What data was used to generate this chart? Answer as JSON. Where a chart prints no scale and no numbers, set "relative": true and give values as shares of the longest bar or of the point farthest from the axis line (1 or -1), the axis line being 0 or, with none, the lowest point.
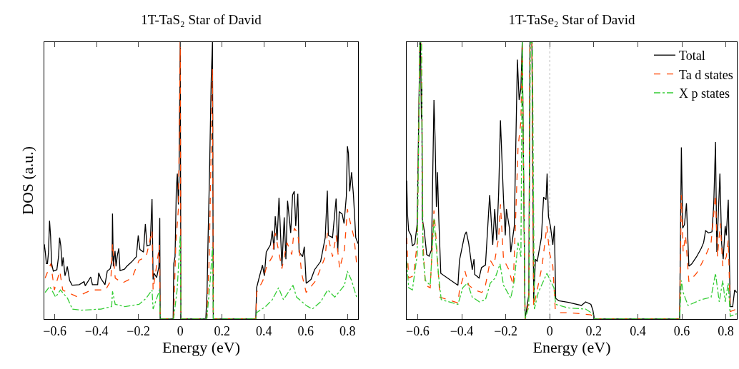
{
  "chart_data": [
    {
      "type": "line",
      "title": "1T-TaS₂ Star of David",
      "xlabel": "Energy (eV)",
      "ylabel": "DOS (a.u.)",
      "relative": true,
      "grid": false,
      "legend": false,
      "xlim": [
        -0.65,
        0.85
      ],
      "xticks": [
        {
          "value": -0.6,
          "label": "−0.6"
        },
        {
          "value": -0.4,
          "label": "−0.4"
        },
        {
          "value": -0.2,
          "label": "−0.2"
        },
        0,
        0.2,
        0.4,
        0.6,
        0.8
      ],
      "series": [
        {
          "color": "#000000",
          "line_style": "solid",
          "x": [
            -0.65,
            -0.645,
            -0.64,
            -0.635,
            -0.63,
            -0.625,
            -0.62,
            -0.615,
            -0.607,
            -0.59,
            -0.582,
            -0.577,
            -0.571,
            -0.565,
            -0.56,
            -0.551,
            -0.54,
            -0.529,
            -0.517,
            -0.483,
            -0.46,
            -0.454,
            -0.428,
            -0.42,
            -0.395,
            -0.39,
            -0.381,
            -0.36,
            -0.349,
            -0.335,
            -0.326,
            -0.324,
            -0.32,
            -0.312,
            -0.307,
            -0.301,
            -0.294,
            -0.288,
            -0.267,
            -0.256,
            -0.233,
            -0.21,
            -0.201,
            -0.193,
            -0.176,
            -0.167,
            -0.159,
            -0.144,
            -0.135,
            -0.13,
            -0.125,
            -0.113,
            -0.102,
            -0.098,
            -0.096,
            -0.034,
            -0.031,
            -0.025,
            -0.019,
            -0.014,
            -0.009,
            -0.006,
            0.0,
            0.003,
            0.122,
            0.128,
            0.133,
            0.14,
            0.148,
            0.154,
            0.158,
            0.361,
            0.365,
            0.378,
            0.393,
            0.402,
            0.411,
            0.431,
            0.44,
            0.448,
            0.454,
            0.463,
            0.472,
            0.486,
            0.497,
            0.505,
            0.513,
            0.528,
            0.537,
            0.545,
            0.552,
            0.562,
            0.568,
            0.585,
            0.593,
            0.602,
            0.625,
            0.642,
            0.671,
            0.693,
            0.703,
            0.708,
            0.728,
            0.745,
            0.753,
            0.76,
            0.774,
            0.783,
            0.794,
            0.799,
            0.804,
            0.81,
            0.819,
            0.828,
            0.839,
            0.85
          ],
          "values": [
            0.27,
            0.24,
            0.2,
            0.2,
            0.24,
            0.355,
            0.3,
            0.2,
            0.173,
            0.178,
            0.225,
            0.294,
            0.264,
            0.19,
            0.223,
            0.156,
            0.19,
            0.139,
            0.122,
            0.124,
            0.135,
            0.12,
            0.152,
            0.124,
            0.124,
            0.167,
            0.148,
            0.124,
            0.173,
            0.182,
            0.212,
            0.381,
            0.19,
            0.246,
            0.19,
            0.229,
            0.255,
            0.175,
            0.18,
            0.19,
            0.206,
            0.225,
            0.302,
            0.251,
            0.242,
            0.343,
            0.264,
            0.268,
            0.433,
            0.143,
            0.165,
            0.15,
            0.19,
            0.365,
            0,
            0,
            0.2,
            0.225,
            0.465,
            0.525,
            0.414,
            0.5,
            1,
            0,
            0,
            0.096,
            0.294,
            0.534,
            0.869,
            1,
            0,
            0,
            0.113,
            0.152,
            0.195,
            0.156,
            0.242,
            0.268,
            0.319,
            0.251,
            0.371,
            0.285,
            0.438,
            0.191,
            0.367,
            0.216,
            0.427,
            0.311,
            0.448,
            0.461,
            0.336,
            0.452,
            0.242,
            0.225,
            0.261,
            0.129,
            0.143,
            0.178,
            0.208,
            0.294,
            0.464,
            0.302,
            0.294,
            0.435,
            0.242,
            0.388,
            0.379,
            0.345,
            0.444,
            0.624,
            0.598,
            0.461,
            0.53,
            0.448,
            0.294,
            0.272
          ]
        },
        {
          "color": "#ff4500",
          "line_style": "dashed",
          "x": [
            -0.646,
            -0.619,
            -0.602,
            -0.576,
            -0.562,
            -0.539,
            -0.494,
            -0.425,
            -0.357,
            -0.332,
            -0.324,
            -0.311,
            -0.277,
            -0.231,
            -0.197,
            -0.163,
            -0.135,
            -0.13,
            -0.099,
            -0.096,
            -0.032,
            -0.021,
            -0.009,
            0.0,
            0.003,
            0.127,
            0.139,
            0.15,
            0.154,
            0.158,
            0.361,
            0.365,
            0.395,
            0.413,
            0.44,
            0.454,
            0.486,
            0.51,
            0.533,
            0.545,
            0.562,
            0.58,
            0.602,
            0.648,
            0.693,
            0.703,
            0.728,
            0.745,
            0.762,
            0.785,
            0.799,
            0.814,
            0.831,
            0.843
          ],
          "values": [
            0.148,
            0.2,
            0.105,
            0.173,
            0.105,
            0.096,
            0.081,
            0.105,
            0.105,
            0.139,
            0.272,
            0.148,
            0.13,
            0.148,
            0.212,
            0.225,
            0.319,
            0.105,
            0.268,
            0,
            0,
            0.276,
            0.397,
            1,
            0,
            0,
            0.233,
            0.723,
            0.903,
            0,
            0,
            0.096,
            0.139,
            0.19,
            0.225,
            0.311,
            0.182,
            0.276,
            0.233,
            0.328,
            0.311,
            0.165,
            0.096,
            0.139,
            0.225,
            0.311,
            0.225,
            0.302,
            0.182,
            0.251,
            0.397,
            0.345,
            0.294,
            0.2
          ]
        },
        {
          "color": "#33cc33",
          "line_style": "dashdot",
          "x": [
            -0.646,
            -0.624,
            -0.596,
            -0.573,
            -0.539,
            -0.516,
            -0.471,
            -0.379,
            -0.328,
            -0.324,
            -0.311,
            -0.265,
            -0.197,
            -0.163,
            -0.135,
            -0.13,
            -0.099,
            -0.096,
            -0.032,
            -0.015,
            0.0,
            0.003,
            0.127,
            0.144,
            0.154,
            0.158,
            0.361,
            0.365,
            0.408,
            0.44,
            0.47,
            0.493,
            0.539,
            0.556,
            0.602,
            0.631,
            0.671,
            0.705,
            0.739,
            0.785,
            0.799,
            0.819,
            0.843
          ],
          "values": [
            0.096,
            0.118,
            0.079,
            0.105,
            0.075,
            0.036,
            0.032,
            0.036,
            0.045,
            0.1,
            0.053,
            0.045,
            0.053,
            0.075,
            0.105,
            0.036,
            0.105,
            0,
            0,
            0.105,
            0.302,
            0,
            0,
            0.148,
            0.26,
            0,
            0,
            0.023,
            0.045,
            0.07,
            0.113,
            0.07,
            0.122,
            0.079,
            0.049,
            0.036,
            0.062,
            0.105,
            0.079,
            0.122,
            0.173,
            0.139,
            0.079
          ]
        }
      ]
    },
    {
      "type": "line",
      "title": "1T-TaSe₂ Star of David",
      "xlabel": "Energy (eV)",
      "relative": true,
      "grid": false,
      "legend": "top right",
      "xlim": [
        -0.65,
        0.85
      ],
      "xticks": [
        {
          "value": -0.6,
          "label": "−0.6"
        },
        {
          "value": -0.4,
          "label": "−0.4"
        },
        {
          "value": -0.2,
          "label": "−0.2"
        },
        0,
        0.2,
        0.4,
        0.6,
        0.8
      ],
      "ref_lines": [
        {
          "axis": "x",
          "value": 0,
          "color": "#bbbbbb",
          "line_style": "dotted"
        }
      ],
      "series": [
        {
          "name": "Total",
          "color": "#000000",
          "line_style": "solid",
          "x": [
            -0.65,
            -0.646,
            -0.641,
            -0.63,
            -0.624,
            -0.613,
            -0.602,
            -0.594,
            -0.59,
            -0.587,
            -0.583,
            -0.581,
            -0.579,
            -0.57,
            -0.559,
            -0.548,
            -0.537,
            -0.526,
            -0.521,
            -0.515,
            -0.51,
            -0.504,
            -0.495,
            -0.417,
            -0.41,
            -0.387,
            -0.379,
            -0.368,
            -0.352,
            -0.344,
            -0.341,
            -0.321,
            -0.31,
            -0.292,
            -0.273,
            -0.259,
            -0.25,
            -0.241,
            -0.232,
            -0.224,
            -0.21,
            -0.202,
            -0.197,
            -0.183,
            -0.177,
            -0.161,
            -0.147,
            -0.139,
            -0.131,
            -0.125,
            -0.112,
            -0.095,
            -0.09,
            -0.081,
            -0.073,
            -0.065,
            -0.057,
            -0.038,
            -0.028,
            -0.017,
            -0.012,
            -0.006,
            0.003,
            0.014,
            0.021,
            0.027,
            0.041,
            0.085,
            0.144,
            0.163,
            0.187,
            0.196,
            0.203,
            0.59,
            0.598,
            0.604,
            0.612,
            0.621,
            0.632,
            0.645,
            0.667,
            0.688,
            0.699,
            0.708,
            0.721,
            0.737,
            0.745,
            0.753,
            0.759,
            0.773,
            0.781,
            0.788,
            0.797,
            0.802,
            0.811,
            0.82,
            0.831,
            0.84,
            0.849
          ],
          "values": [
            0.5,
            0.379,
            0.319,
            0.302,
            0.264,
            0.272,
            0.345,
            0.791,
            1,
            1,
            0.723,
            0.839,
            0.362,
            0.319,
            0.233,
            0.227,
            0.251,
            0.791,
            0.658,
            0.405,
            0.53,
            0.362,
            0.165,
            0.122,
            0.212,
            0.302,
            0.315,
            0.272,
            0.178,
            0.216,
            0.161,
            0.148,
            0.186,
            0.195,
            0.448,
            0.268,
            0.397,
            0.285,
            0.457,
            0.718,
            0.431,
            0.302,
            0.397,
            0.328,
            0.242,
            0.336,
            0.937,
            0.791,
            0.834,
            1,
            0,
            0.088,
            1,
            1,
            0.07,
            0.216,
            0.208,
            0.294,
            0.44,
            0.431,
            0.525,
            0.371,
            0.336,
            0.268,
            0.336,
            0.075,
            0.066,
            0.06,
            0.049,
            0.062,
            0.053,
            0.032,
            0,
            0,
            0.62,
            0.328,
            0.341,
            0.418,
            0.191,
            0.199,
            0.225,
            0.255,
            0.276,
            0.319,
            0.311,
            0.315,
            0.414,
            0.639,
            0.242,
            0.525,
            0.272,
            0.216,
            0.336,
            0.302,
            0.431,
            0.045,
            0.045,
            0.105,
            0.096
          ]
        },
        {
          "name": "Ta d states",
          "color": "#ff4500",
          "line_style": "dashed",
          "x": [
            -0.65,
            -0.641,
            -0.619,
            -0.602,
            -0.59,
            -0.583,
            -0.576,
            -0.565,
            -0.543,
            -0.526,
            -0.515,
            -0.499,
            -0.417,
            -0.41,
            -0.385,
            -0.368,
            -0.341,
            -0.308,
            -0.292,
            -0.27,
            -0.254,
            -0.232,
            -0.224,
            -0.21,
            -0.188,
            -0.166,
            -0.155,
            -0.144,
            -0.131,
            -0.125,
            -0.112,
            -0.095,
            -0.09,
            -0.081,
            -0.073,
            -0.057,
            -0.035,
            -0.013,
            -0.002,
            0.014,
            0.025,
            0.041,
            0.085,
            0.144,
            0.187,
            0.203,
            0.59,
            0.598,
            0.606,
            0.617,
            0.632,
            0.667,
            0.706,
            0.733,
            0.753,
            0.762,
            0.775,
            0.786,
            0.802,
            0.811,
            0.82,
            0.849
          ],
          "values": [
            0.294,
            0.148,
            0.156,
            0.276,
            1,
            1,
            0.276,
            0.122,
            0.113,
            0.392,
            0.276,
            0.079,
            0.058,
            0.105,
            0.173,
            0.122,
            0.105,
            0.096,
            0.122,
            0.212,
            0.191,
            0.294,
            0.414,
            0.216,
            0.182,
            0.122,
            0.362,
            0.62,
            0.714,
            1,
            0,
            0.062,
            1,
            1,
            0.045,
            0.105,
            0.191,
            0.336,
            0.242,
            0.191,
            0.036,
            0.023,
            0.023,
            0.019,
            0.015,
            0,
            0,
            0.448,
            0.242,
            0.302,
            0.135,
            0.165,
            0.225,
            0.276,
            0.448,
            0.225,
            0.345,
            0.191,
            0.225,
            0.285,
            0.027,
            0.036
          ]
        },
        {
          "name": "X p states",
          "color": "#33cc33",
          "line_style": "dashdot",
          "x": [
            -0.65,
            -0.641,
            -0.624,
            -0.602,
            -0.59,
            -0.583,
            -0.576,
            -0.565,
            -0.543,
            -0.526,
            -0.504,
            -0.493,
            -0.417,
            -0.395,
            -0.374,
            -0.352,
            -0.319,
            -0.292,
            -0.27,
            -0.248,
            -0.226,
            -0.21,
            -0.177,
            -0.161,
            -0.144,
            -0.131,
            -0.125,
            -0.112,
            -0.095,
            -0.088,
            -0.079,
            -0.07,
            -0.052,
            -0.013,
            0.019,
            0.027,
            0.085,
            0.163,
            0.196,
            0.203,
            0.59,
            0.598,
            0.606,
            0.628,
            0.688,
            0.733,
            0.753,
            0.77,
            0.786,
            0.797,
            0.811,
            0.82,
            0.849
          ],
          "values": [
            0.208,
            0.113,
            0.105,
            0.233,
            1,
            1,
            0.233,
            0.139,
            0.122,
            0.362,
            0.148,
            0.07,
            0.053,
            0.113,
            0.13,
            0.079,
            0.062,
            0.07,
            0.13,
            0.148,
            0.199,
            0.122,
            0.075,
            0.139,
            0.276,
            0.225,
            1,
            0,
            0.045,
            1,
            1,
            0.036,
            0.096,
            0.165,
            0.113,
            0.053,
            0.04,
            0.036,
            0.019,
            0,
            0,
            0.139,
            0.096,
            0.049,
            0.07,
            0.079,
            0.165,
            0.062,
            0.139,
            0.062,
            0.13,
            0.01,
            0.019
          ]
        }
      ]
    }
  ]
}
